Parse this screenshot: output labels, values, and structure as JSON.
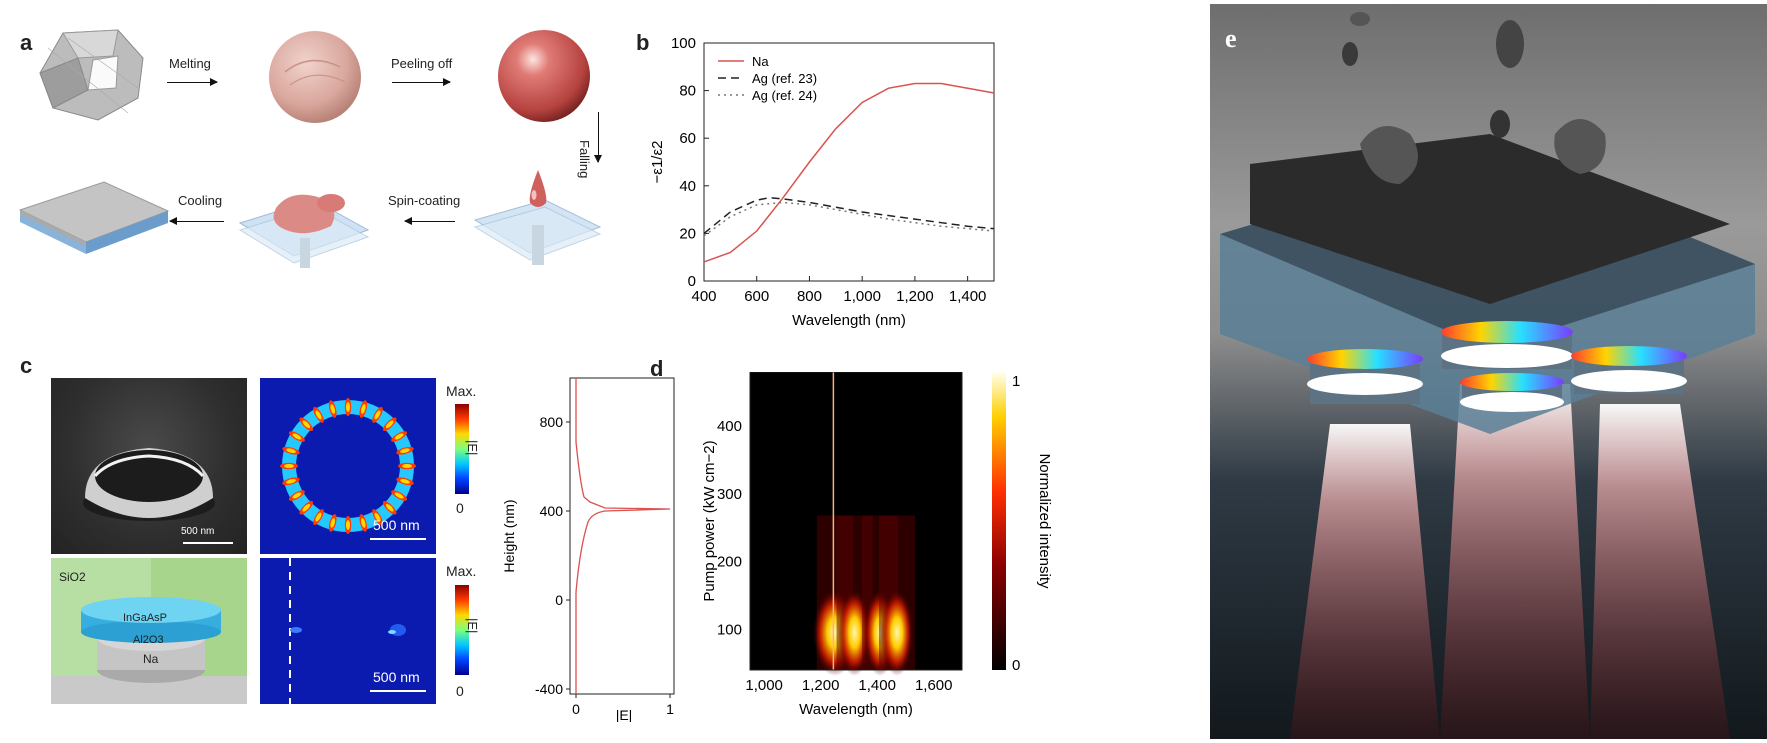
{
  "panel_a": {
    "label": "a",
    "steps": {
      "melting": "Melting",
      "peeling": "Peeling off",
      "falling": "Falling",
      "spin": "Spin-coating",
      "cooling": "Cooling"
    }
  },
  "panel_b": {
    "label": "b"
  },
  "panel_c": {
    "label": "c",
    "scale_sem": "500 nm",
    "scale_field": "500 nm",
    "scale_field2": "500 nm",
    "cbar_max": "Max.",
    "cbar_min": "0",
    "cbar_label": "|E|",
    "layers": {
      "sio2": "SiO2",
      "ingaasp": "InGaAsP",
      "al2o3": "Al2O3",
      "na": "Na"
    },
    "profile": {
      "ylabel": "Height (nm)",
      "xlabel": "|E|",
      "yticks": [
        "800",
        "400",
        "0",
        "-400"
      ],
      "xticks": [
        "0",
        "1"
      ]
    }
  },
  "panel_d": {
    "label": "d"
  },
  "panel_e": {
    "label": "e"
  },
  "chart_data": [
    {
      "id": "b",
      "type": "line",
      "xlabel": "Wavelength (nm)",
      "ylabel": "−ε1/ε2",
      "xlim": [
        400,
        1500
      ],
      "ylim": [
        0,
        100
      ],
      "xticks": [
        "400",
        "600",
        "800",
        "1,000",
        "1,200",
        "1,400"
      ],
      "yticks": [
        "0",
        "20",
        "40",
        "60",
        "80",
        "100"
      ],
      "legend_position": "top-left",
      "series": [
        {
          "name": "Na",
          "style": "solid",
          "color": "#d9534f",
          "x": [
            400,
            500,
            600,
            700,
            800,
            900,
            1000,
            1100,
            1200,
            1300,
            1400,
            1500
          ],
          "y": [
            8,
            12,
            21,
            35,
            50,
            64,
            75,
            81,
            83,
            83,
            81,
            79
          ]
        },
        {
          "name": "Ag (ref. 23)",
          "style": "dashed",
          "color": "#222222",
          "x": [
            400,
            500,
            600,
            650,
            700,
            800,
            900,
            1000,
            1100,
            1200,
            1300,
            1400,
            1500
          ],
          "y": [
            20,
            29,
            34,
            35,
            34.5,
            33,
            31,
            29,
            27.5,
            26,
            24.5,
            23,
            22
          ]
        },
        {
          "name": "Ag (ref. 24)",
          "style": "dotted",
          "color": "#777777",
          "x": [
            400,
            500,
            600,
            700,
            800,
            900,
            1000,
            1100,
            1200,
            1300,
            1400,
            1500
          ],
          "y": [
            19,
            27,
            32,
            33,
            32,
            30,
            28,
            26,
            24.5,
            23,
            22,
            21
          ]
        }
      ]
    },
    {
      "id": "d",
      "type": "heatmap",
      "xlabel": "Wavelength (nm)",
      "ylabel": "Pump power (kW cm−2)",
      "xlim": [
        950,
        1700
      ],
      "ylim": [
        40,
        480
      ],
      "xticks": [
        "1,000",
        "1,200",
        "1,400",
        "1,600"
      ],
      "yticks": [
        "100",
        "200",
        "300",
        "400"
      ],
      "colorbar": {
        "label": "Normalized intensity",
        "ticks": [
          "0",
          "1"
        ]
      },
      "laser_line_nm": 1245,
      "emission_bands_nm": [
        1250,
        1320,
        1410,
        1470
      ],
      "threshold_kw_cm2": 150
    }
  ]
}
